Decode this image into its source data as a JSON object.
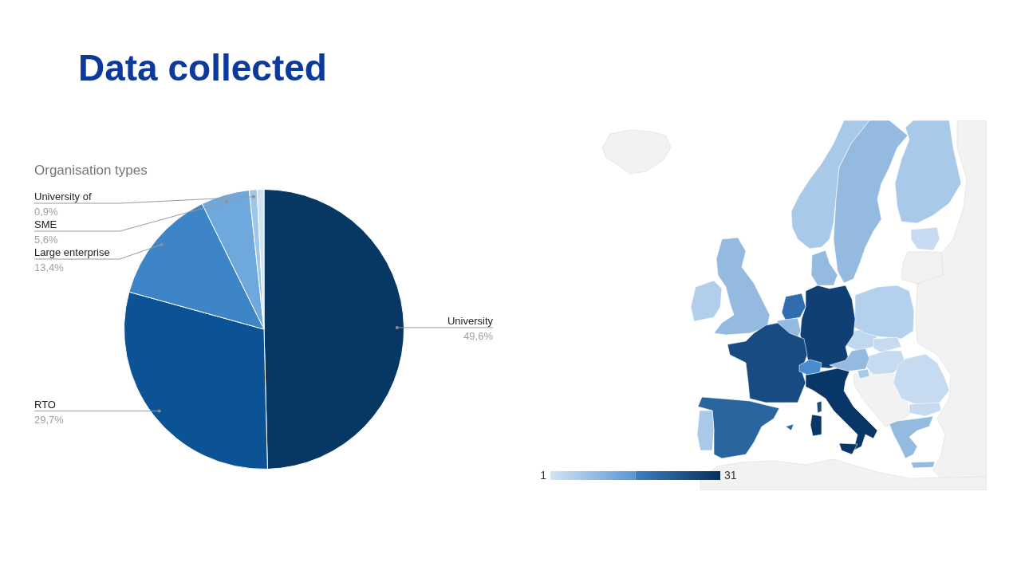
{
  "chart_data": [
    {
      "type": "pie",
      "title": "Data collected",
      "subtitle": "Organisation types",
      "categories": [
        "University",
        "RTO",
        "Large enterprise",
        "SME",
        "University of",
        null
      ],
      "values": [
        49.6,
        29.7,
        13.4,
        5.6,
        0.9,
        0.8
      ],
      "colors": [
        "#073763",
        "#0b5394",
        "#3d85c6",
        "#6fa8dc",
        "#9fc5e8",
        "#cfe2f3"
      ],
      "value_labels": [
        "49,6%",
        "29,7%",
        "13,4%",
        "5,6%",
        "0,9%",
        null
      ]
    },
    {
      "type": "other",
      "annotations": [
        "1",
        "31"
      ]
    }
  ]
}
